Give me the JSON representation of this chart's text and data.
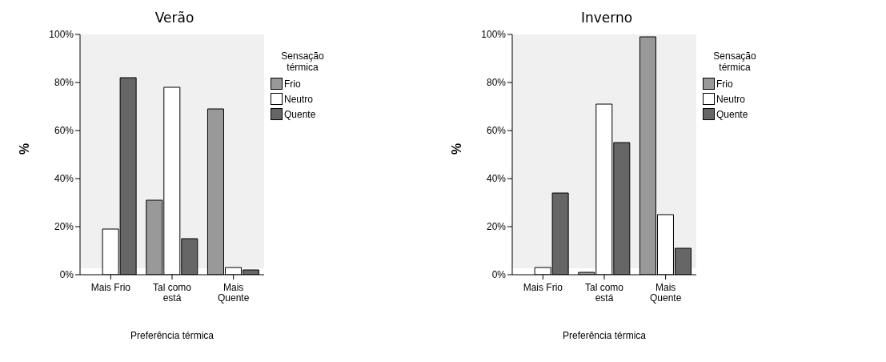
{
  "chart_data": [
    {
      "type": "bar",
      "title": "Verão",
      "xlabel": "Preferência térmica",
      "ylabel": "%",
      "legend_title": "Sensação térmica",
      "legend": "right",
      "categories": [
        "Mais Frio",
        "Tal como está",
        "Mais Quente"
      ],
      "ylim": [
        0,
        100
      ],
      "yticks": [
        {
          "value": 0,
          "label": "0%"
        },
        {
          "value": 20,
          "label": "20%"
        },
        {
          "value": 40,
          "label": "40%"
        },
        {
          "value": 60,
          "label": "60%"
        },
        {
          "value": 80,
          "label": "80%"
        },
        {
          "value": 100,
          "label": "100%"
        }
      ],
      "series": [
        {
          "name": "Frio",
          "color": "#999999",
          "values": [
            0,
            31,
            69
          ]
        },
        {
          "name": "Neutro",
          "color": "#ffffff",
          "values": [
            19,
            78,
            3
          ]
        },
        {
          "name": "Quente",
          "color": "#666666",
          "values": [
            82,
            15,
            2
          ]
        }
      ]
    },
    {
      "type": "bar",
      "title": "Inverno",
      "xlabel": "Preferência térmica",
      "ylabel": "%",
      "legend_title": "Sensação térmica",
      "legend": "right",
      "categories": [
        "Mais Frio",
        "Tal como está",
        "Mais Quente"
      ],
      "ylim": [
        0,
        100
      ],
      "yticks": [
        {
          "value": 0,
          "label": "0%"
        },
        {
          "value": 20,
          "label": "20%"
        },
        {
          "value": 40,
          "label": "40%"
        },
        {
          "value": 60,
          "label": "60%"
        },
        {
          "value": 80,
          "label": "80%"
        },
        {
          "value": 100,
          "label": "100%"
        }
      ],
      "series": [
        {
          "name": "Frio",
          "color": "#999999",
          "values": [
            0,
            1,
            99
          ]
        },
        {
          "name": "Neutro",
          "color": "#ffffff",
          "values": [
            3,
            71,
            25
          ]
        },
        {
          "name": "Quente",
          "color": "#666666",
          "values": [
            34,
            55,
            11
          ]
        }
      ]
    }
  ]
}
